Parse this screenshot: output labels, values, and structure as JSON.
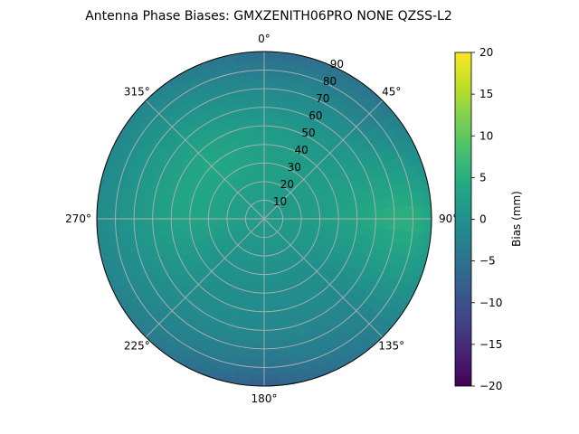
{
  "chart_data": {
    "type": "heatmap",
    "projection": "polar",
    "title": "Antenna Phase Biases: GMXZENITH06PRO  NONE QZSS-L2",
    "angular_axis": {
      "zero_location": "N",
      "direction": "clockwise",
      "ticks": [
        0,
        45,
        90,
        135,
        180,
        225,
        270,
        315
      ],
      "tick_labels": [
        "0°",
        "45°",
        "90°",
        "135°",
        "180°",
        "225°",
        "270°",
        "315°"
      ]
    },
    "radial_axis": {
      "range": [
        0,
        90
      ],
      "ticks": [
        10,
        20,
        30,
        40,
        50,
        60,
        70,
        80,
        90
      ],
      "tick_labels": [
        "10",
        "20",
        "30",
        "40",
        "50",
        "60",
        "70",
        "80",
        "90"
      ]
    },
    "grid": true,
    "colorbar": {
      "label": "Bias (mm)",
      "range": [
        -20,
        20
      ],
      "colormap": "viridis",
      "ticks": [
        -20,
        -15,
        -10,
        -5,
        0,
        5,
        10,
        15,
        20
      ],
      "tick_labels": [
        "−20",
        "−15",
        "−10",
        "−5",
        "0",
        "5",
        "10",
        "15",
        "20"
      ]
    },
    "field_samples_mm": {
      "radius_deg": [
        0,
        10,
        20,
        30,
        40,
        50,
        60,
        70,
        80,
        90
      ],
      "by_azimuth": [
        {
          "azimuth": 0,
          "values": [
            1.5,
            1.8,
            2.2,
            2.6,
            2.4,
            1.6,
            0.2,
            -1.5,
            -3.5,
            -6.0
          ]
        },
        {
          "azimuth": 45,
          "values": [
            1.5,
            1.6,
            1.8,
            1.8,
            1.5,
            1.0,
            0.0,
            -1.5,
            -3.0,
            -4.5
          ]
        },
        {
          "azimuth": 90,
          "values": [
            1.5,
            1.5,
            1.8,
            2.2,
            2.8,
            3.6,
            4.5,
            5.5,
            5.5,
            3.5
          ]
        },
        {
          "azimuth": 135,
          "values": [
            1.5,
            1.2,
            0.8,
            0.2,
            -0.5,
            -1.0,
            -1.5,
            -2.0,
            -2.5,
            -3.0
          ]
        },
        {
          "azimuth": 180,
          "values": [
            1.5,
            1.0,
            0.5,
            0.0,
            -0.6,
            -1.0,
            -1.5,
            -3.0,
            -5.0,
            -8.0
          ]
        },
        {
          "azimuth": 225,
          "values": [
            1.5,
            1.2,
            0.8,
            0.3,
            0.0,
            -0.3,
            -0.8,
            -1.5,
            -2.5,
            -3.5
          ]
        },
        {
          "azimuth": 270,
          "values": [
            1.5,
            2.0,
            2.6,
            3.2,
            3.5,
            3.0,
            2.0,
            1.0,
            0.0,
            -1.0
          ]
        },
        {
          "azimuth": 315,
          "values": [
            1.5,
            2.0,
            2.8,
            3.6,
            4.0,
            3.2,
            2.0,
            0.8,
            -0.5,
            -2.0
          ]
        }
      ]
    }
  }
}
